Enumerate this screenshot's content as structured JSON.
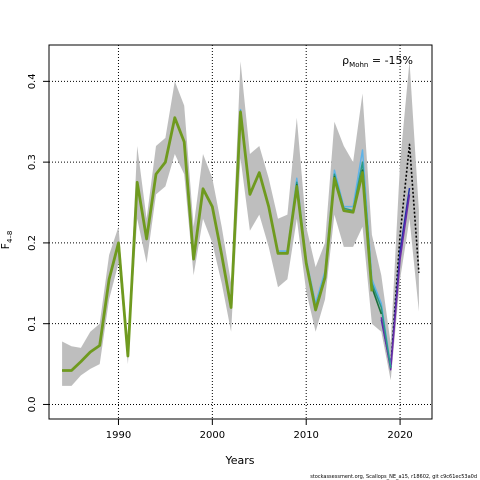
{
  "chart_data": {
    "type": "line",
    "xlabel": "Years",
    "ylabel_main": "F",
    "ylabel_sub": "4–8",
    "xlim": [
      1982.6,
      2023.4
    ],
    "ylim": [
      -0.018,
      0.445
    ],
    "xticks": [
      1990,
      2000,
      2010,
      2020
    ],
    "yticks": [
      0.0,
      0.1,
      0.2,
      0.3,
      0.4
    ],
    "ytick_labels": [
      "0.0",
      "0.1",
      "0.2",
      "0.3",
      "0.4"
    ],
    "grid": true,
    "annotation": {
      "rho_symbol": "ρ",
      "rho_sub": "Mohn",
      "rho_text": " = -15%"
    },
    "footer": "stockassessment.org, Scallops_NE_a15, r18602, git c9c61ec53a0d",
    "band": {
      "x": [
        1984,
        1985,
        1986,
        1987,
        1988,
        1989,
        1990,
        1991,
        1992,
        1993,
        1994,
        1995,
        1996,
        1997,
        1998,
        1999,
        2000,
        2001,
        2002,
        2003,
        2004,
        2005,
        2006,
        2007,
        2008,
        2009,
        2010,
        2011,
        2012,
        2013,
        2014,
        2015,
        2016,
        2017,
        2018,
        2019,
        2020,
        2021,
        2022
      ],
      "upper": [
        0.078,
        0.072,
        0.07,
        0.09,
        0.1,
        0.185,
        0.22,
        0.075,
        0.32,
        0.23,
        0.32,
        0.33,
        0.4,
        0.37,
        0.22,
        0.31,
        0.28,
        0.22,
        0.15,
        0.425,
        0.31,
        0.32,
        0.28,
        0.23,
        0.235,
        0.355,
        0.22,
        0.17,
        0.2,
        0.35,
        0.32,
        0.3,
        0.385,
        0.21,
        0.16,
        0.075,
        0.3,
        0.425,
        0.24
      ],
      "lower": [
        0.023,
        0.023,
        0.036,
        0.044,
        0.05,
        0.13,
        0.175,
        0.05,
        0.23,
        0.175,
        0.26,
        0.27,
        0.31,
        0.285,
        0.16,
        0.23,
        0.2,
        0.15,
        0.09,
        0.305,
        0.215,
        0.235,
        0.195,
        0.145,
        0.155,
        0.23,
        0.14,
        0.09,
        0.13,
        0.235,
        0.195,
        0.195,
        0.22,
        0.1,
        0.09,
        0.03,
        0.155,
        0.23,
        0.115
      ]
    },
    "series": [
      {
        "name": "peel-black",
        "color": "#000000",
        "width": 1.6,
        "dash": true,
        "x": [
          2019,
          2020,
          2021,
          2022
        ],
        "y": [
          0.045,
          0.21,
          0.322,
          0.163
        ]
      },
      {
        "name": "peel-blue",
        "color": "#2233aa",
        "width": 1.5,
        "x": [
          2018,
          2019,
          2020,
          2021
        ],
        "y": [
          0.105,
          0.045,
          0.19,
          0.268
        ]
      },
      {
        "name": "peel-purple",
        "color": "#6a2aa8",
        "width": 1.5,
        "x": [
          2018,
          2019,
          2020,
          2021
        ],
        "y": [
          0.108,
          0.043,
          0.18,
          0.26
        ]
      },
      {
        "name": "peel-skyblue",
        "color": "#5fb3e8",
        "width": 1.5,
        "x": [
          1984,
          1985,
          1986,
          1987,
          1988,
          1989,
          1990,
          1991,
          1992,
          1993,
          1994,
          1995,
          1996,
          1997,
          1998,
          1999,
          2000,
          2001,
          2002,
          2003,
          2004,
          2005,
          2006,
          2007,
          2008,
          2009,
          2010,
          2011,
          2012,
          2013,
          2014,
          2015,
          2016,
          2017,
          2018,
          2019
        ],
        "y": [
          0.042,
          0.042,
          0.053,
          0.065,
          0.073,
          0.155,
          0.2,
          0.06,
          0.275,
          0.205,
          0.285,
          0.3,
          0.355,
          0.325,
          0.18,
          0.267,
          0.245,
          0.185,
          0.12,
          0.365,
          0.26,
          0.287,
          0.245,
          0.19,
          0.19,
          0.28,
          0.18,
          0.125,
          0.165,
          0.29,
          0.245,
          0.245,
          0.315,
          0.155,
          0.125,
          0.047
        ]
      },
      {
        "name": "peel-teal",
        "color": "#2a9a86",
        "width": 1.5,
        "x": [
          1984,
          1985,
          1986,
          1987,
          1988,
          1989,
          1990,
          1991,
          1992,
          1993,
          1994,
          1995,
          1996,
          1997,
          1998,
          1999,
          2000,
          2001,
          2002,
          2003,
          2004,
          2005,
          2006,
          2007,
          2008,
          2009,
          2010,
          2011,
          2012,
          2013,
          2014,
          2015,
          2016,
          2017,
          2018,
          2019
        ],
        "y": [
          0.042,
          0.042,
          0.053,
          0.065,
          0.073,
          0.155,
          0.2,
          0.06,
          0.275,
          0.205,
          0.285,
          0.3,
          0.355,
          0.325,
          0.18,
          0.267,
          0.245,
          0.185,
          0.12,
          0.363,
          0.26,
          0.287,
          0.245,
          0.188,
          0.188,
          0.275,
          0.178,
          0.12,
          0.16,
          0.285,
          0.243,
          0.24,
          0.3,
          0.15,
          0.12,
          0.045
        ]
      },
      {
        "name": "peel-darkgreen",
        "color": "#1c6f3a",
        "width": 1.6,
        "x": [
          1984,
          1985,
          1986,
          1987,
          1988,
          1989,
          1990,
          1991,
          1992,
          1993,
          1994,
          1995,
          1996,
          1997,
          1998,
          1999,
          2000,
          2001,
          2002,
          2003,
          2004,
          2005,
          2006,
          2007,
          2008,
          2009,
          2010,
          2011,
          2012,
          2013,
          2014,
          2015,
          2016,
          2017,
          2018
        ],
        "y": [
          0.042,
          0.042,
          0.053,
          0.065,
          0.073,
          0.155,
          0.2,
          0.06,
          0.275,
          0.205,
          0.285,
          0.3,
          0.355,
          0.325,
          0.18,
          0.267,
          0.245,
          0.185,
          0.12,
          0.363,
          0.26,
          0.287,
          0.245,
          0.187,
          0.187,
          0.272,
          0.176,
          0.118,
          0.158,
          0.282,
          0.24,
          0.238,
          0.29,
          0.145,
          0.112
        ]
      },
      {
        "name": "peel-olive",
        "color": "#6f9a1f",
        "width": 2.8,
        "x": [
          1984,
          1985,
          1986,
          1987,
          1988,
          1989,
          1990,
          1991,
          1992,
          1993,
          1994,
          1995,
          1996,
          1997,
          1998,
          1999,
          2000,
          2001,
          2002,
          2003,
          2004,
          2005,
          2006,
          2007,
          2008,
          2009,
          2010,
          2011,
          2012,
          2013,
          2014,
          2015,
          2016,
          2017
        ],
        "y": [
          0.042,
          0.042,
          0.053,
          0.065,
          0.073,
          0.155,
          0.2,
          0.06,
          0.275,
          0.205,
          0.285,
          0.3,
          0.355,
          0.325,
          0.18,
          0.267,
          0.245,
          0.185,
          0.12,
          0.362,
          0.26,
          0.287,
          0.245,
          0.187,
          0.187,
          0.27,
          0.175,
          0.117,
          0.157,
          0.28,
          0.24,
          0.238,
          0.287,
          0.14
        ]
      }
    ]
  }
}
